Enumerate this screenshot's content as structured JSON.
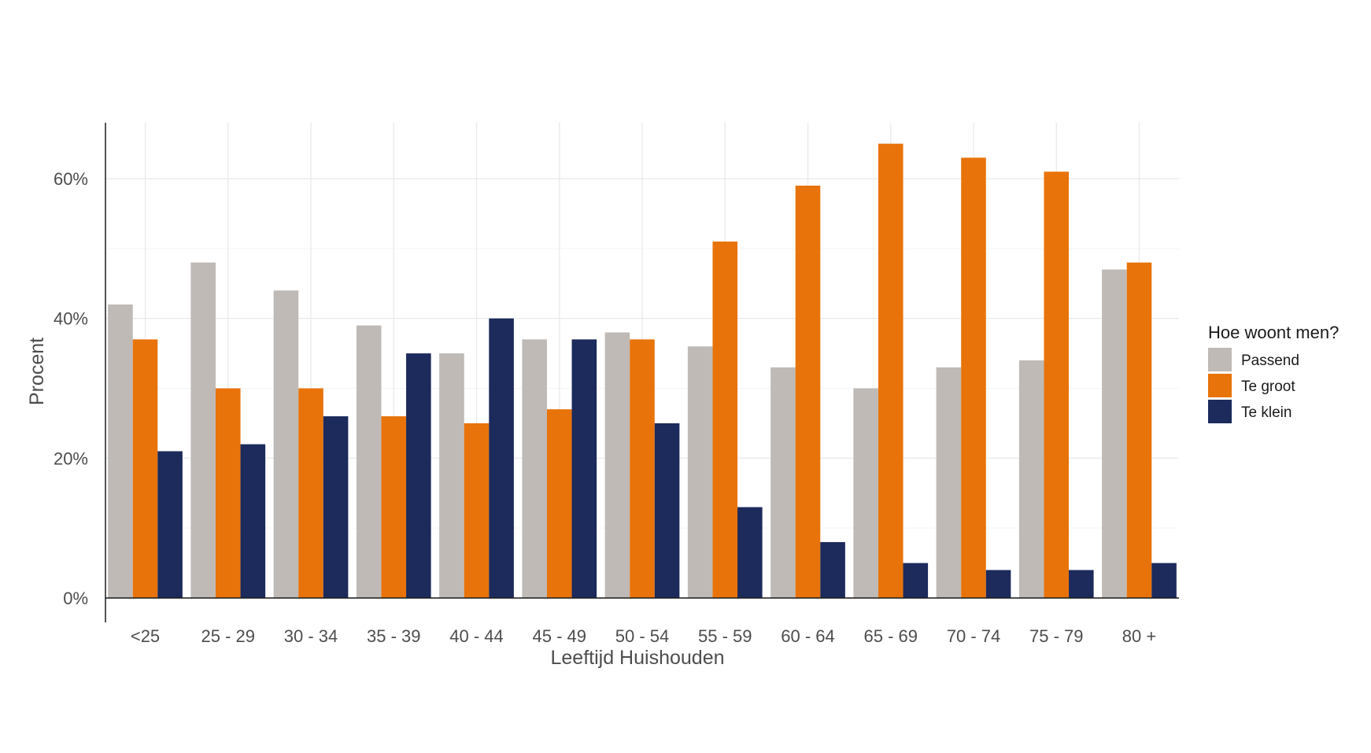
{
  "chart_data": {
    "type": "bar",
    "title": "",
    "xlabel": "Leeftijd Huishouden",
    "ylabel": "Procent",
    "categories": [
      "<25",
      "25 - 29",
      "30 - 34",
      "35 - 39",
      "40 - 44",
      "45 - 49",
      "50 - 54",
      "55 - 59",
      "60 - 64",
      "65 - 69",
      "70 - 74",
      "75 - 79",
      "80 +"
    ],
    "series": [
      {
        "name": "Passend",
        "color": "#bfbab6",
        "values": [
          42,
          48,
          44,
          39,
          35,
          37,
          38,
          36,
          33,
          30,
          33,
          34,
          47
        ]
      },
      {
        "name": "Te groot",
        "color": "#e8730a",
        "values": [
          37,
          30,
          30,
          26,
          25,
          27,
          37,
          51,
          59,
          65,
          63,
          61,
          48
        ]
      },
      {
        "name": "Te klein",
        "color": "#1c2a5c",
        "values": [
          21,
          22,
          26,
          35,
          40,
          37,
          25,
          13,
          8,
          5,
          4,
          4,
          5
        ]
      }
    ],
    "ylim": [
      0,
      68
    ],
    "yticks": [
      0,
      20,
      40,
      60
    ],
    "ytick_labels": [
      "0%",
      "20%",
      "40%",
      "60%"
    ],
    "grid": true,
    "legend": {
      "title": "Hoe woont men?",
      "position": "right"
    }
  }
}
